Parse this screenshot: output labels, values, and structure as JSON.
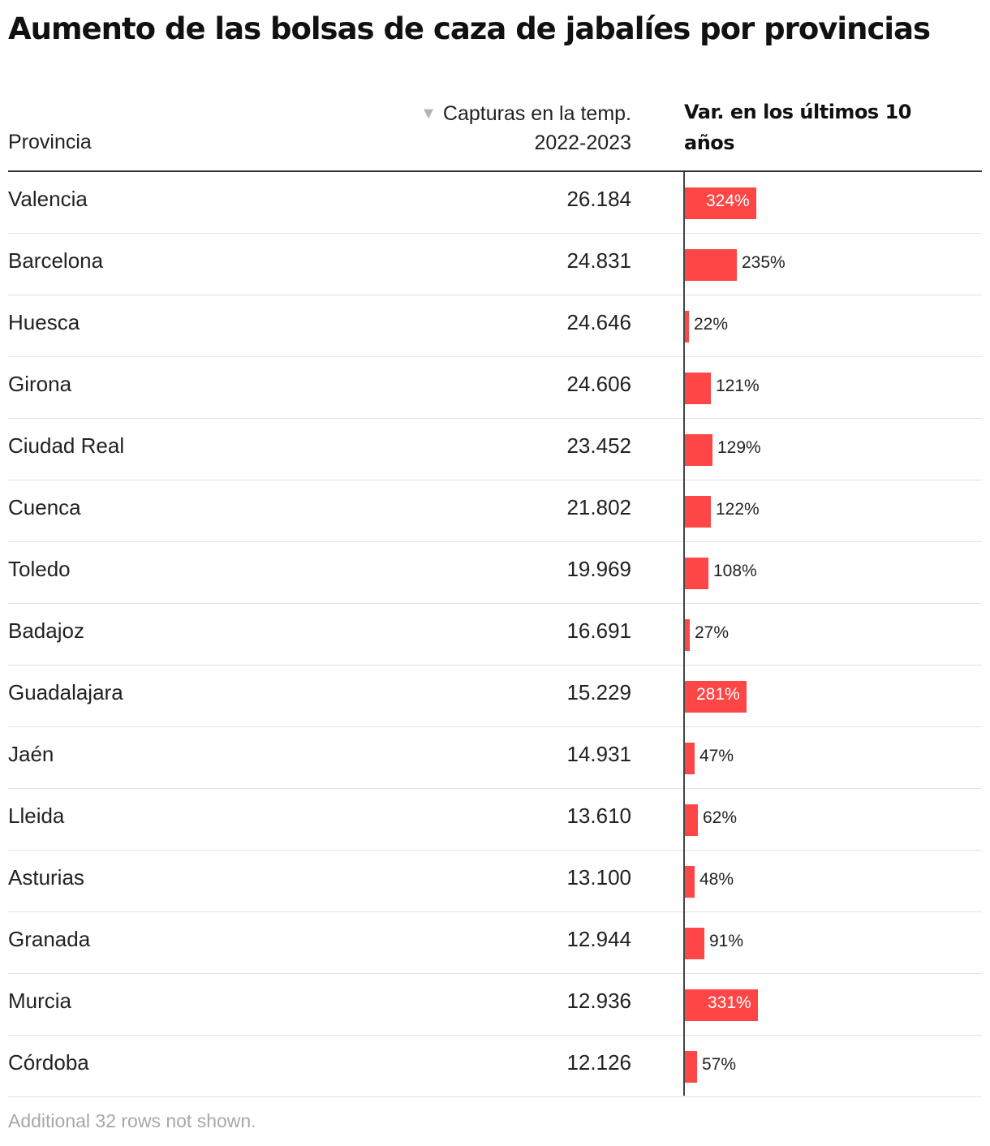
{
  "title": "Aumento de las bolsas de caza de jabalíes por provincias",
  "header": {
    "provincia": "Provincia",
    "capturas_line1": "Capturas en la temp.",
    "capturas_line2": "2022-2023",
    "sort_icon": "triangle-down-icon",
    "variacion": "Var. en los últimos 10 años"
  },
  "bar_color": "#ff4646",
  "chart_data": {
    "type": "table",
    "columns": [
      "Provincia",
      "Capturas en la temp. 2022-2023",
      "Var. en los últimos 10 años"
    ],
    "rows": [
      {
        "provincia": "Valencia",
        "capturas": "26.184",
        "var": 324,
        "var_label": "324%"
      },
      {
        "provincia": "Barcelona",
        "capturas": "24.831",
        "var": 235,
        "var_label": "235%"
      },
      {
        "provincia": "Huesca",
        "capturas": "24.646",
        "var": 22,
        "var_label": "22%"
      },
      {
        "provincia": "Girona",
        "capturas": "24.606",
        "var": 121,
        "var_label": "121%"
      },
      {
        "provincia": "Ciudad Real",
        "capturas": "23.452",
        "var": 129,
        "var_label": "129%"
      },
      {
        "provincia": "Cuenca",
        "capturas": "21.802",
        "var": 122,
        "var_label": "122%"
      },
      {
        "provincia": "Toledo",
        "capturas": "19.969",
        "var": 108,
        "var_label": "108%"
      },
      {
        "provincia": "Badajoz",
        "capturas": "16.691",
        "var": 27,
        "var_label": "27%"
      },
      {
        "provincia": "Guadalajara",
        "capturas": "15.229",
        "var": 281,
        "var_label": "281%"
      },
      {
        "provincia": "Jaén",
        "capturas": "14.931",
        "var": 47,
        "var_label": "47%"
      },
      {
        "provincia": "Lleida",
        "capturas": "13.610",
        "var": 62,
        "var_label": "62%"
      },
      {
        "provincia": "Asturias",
        "capturas": "13.100",
        "var": 48,
        "var_label": "48%"
      },
      {
        "provincia": "Granada",
        "capturas": "12.944",
        "var": 91,
        "var_label": "91%"
      },
      {
        "provincia": "Murcia",
        "capturas": "12.936",
        "var": 331,
        "var_label": "331%"
      },
      {
        "provincia": "Córdoba",
        "capturas": "12.126",
        "var": 57,
        "var_label": "57%"
      }
    ]
  },
  "footnote": "Additional 32 rows not shown."
}
